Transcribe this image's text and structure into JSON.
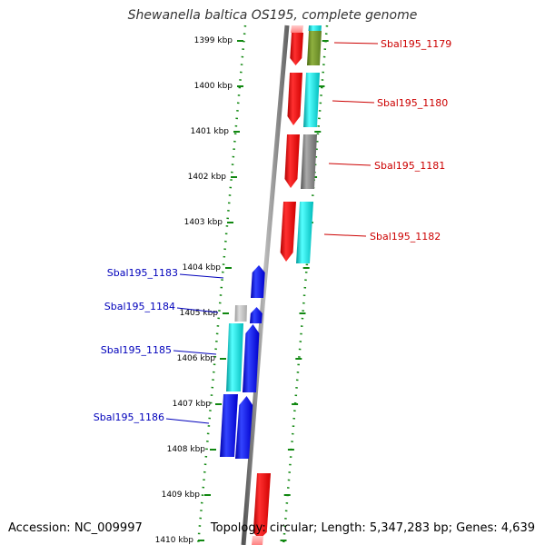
{
  "title": "Shewanella baltica OS195, complete genome",
  "footer": {
    "accession": "Accession: NC_009997",
    "summary": "Topology: circular; Length: 5,347,283 bp; Genes: 4,639"
  },
  "scale": {
    "unit": "kbp",
    "ticks": [
      "1399 kbp",
      "1400 kbp",
      "1401 kbp",
      "1402 kbp",
      "1403 kbp",
      "1404 kbp",
      "1405 kbp",
      "1406 kbp",
      "1407 kbp",
      "1408 kbp",
      "1409 kbp",
      "1410 kbp"
    ]
  },
  "colors": {
    "red": "#ff0000",
    "olive": "#6b8e23",
    "cyan": "#00cccc",
    "gray": "#777777",
    "lightgray": "#b0b0b0",
    "blue": "#0000ee",
    "tick_green": "#118811",
    "red_label": "#cc0000",
    "blue_label": "#0000bb"
  },
  "genes_forward": [
    {
      "name": "Sbal195_1179"
    },
    {
      "name": "Sbal195_1180"
    },
    {
      "name": "Sbal195_1181"
    },
    {
      "name": "Sbal195_1182"
    }
  ],
  "genes_reverse": [
    {
      "name": "Sbal195_1183"
    },
    {
      "name": "Sbal195_1184"
    },
    {
      "name": "Sbal195_1185"
    },
    {
      "name": "Sbal195_1186"
    }
  ]
}
